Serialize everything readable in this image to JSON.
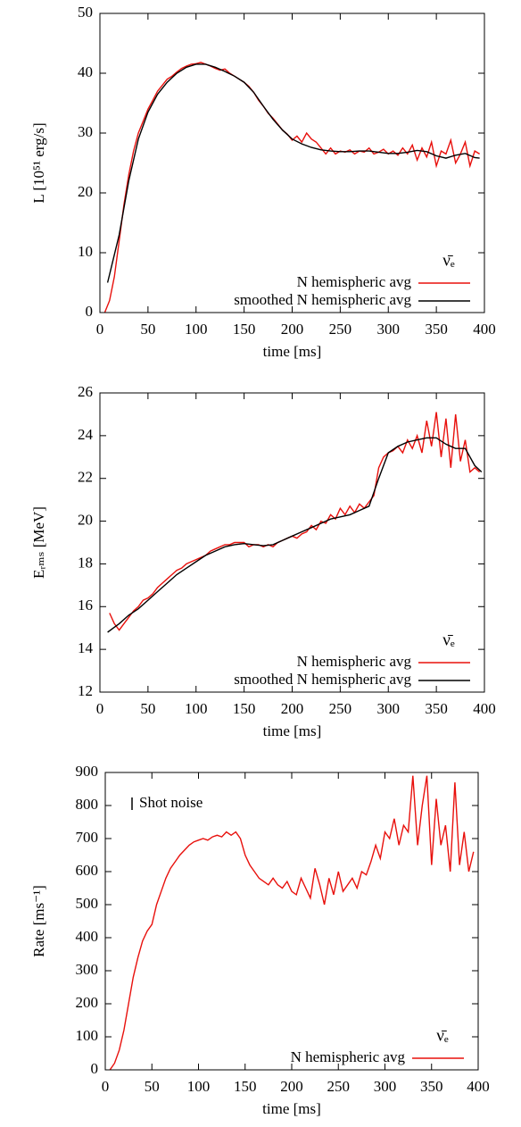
{
  "chart_data": [
    {
      "type": "line",
      "xlabel": "time [ms]",
      "ylabel": "L [10⁵¹ erg/s]",
      "legend_title": "ν̄ₑ",
      "legend": "lower right",
      "xlim": [
        0,
        400
      ],
      "xticks": [
        0,
        50,
        100,
        150,
        200,
        250,
        300,
        350,
        400
      ],
      "ylim": [
        0,
        50
      ],
      "yticks": [
        0,
        10,
        20,
        30,
        40,
        50
      ],
      "series": [
        {
          "name": "N hemispheric avg",
          "color": "#e8100c",
          "x": [
            5,
            10,
            15,
            20,
            25,
            30,
            35,
            40,
            45,
            50,
            55,
            60,
            65,
            70,
            75,
            80,
            85,
            90,
            95,
            100,
            105,
            110,
            115,
            120,
            125,
            130,
            135,
            140,
            145,
            150,
            155,
            160,
            165,
            170,
            175,
            180,
            185,
            190,
            195,
            200,
            205,
            210,
            215,
            220,
            225,
            230,
            235,
            240,
            245,
            250,
            255,
            260,
            265,
            270,
            275,
            280,
            285,
            290,
            295,
            300,
            305,
            310,
            315,
            320,
            325,
            330,
            335,
            340,
            345,
            350,
            355,
            360,
            365,
            370,
            375,
            380,
            385,
            390,
            395
          ],
          "values": [
            0,
            2,
            6,
            12,
            18,
            23,
            27,
            30,
            32,
            34,
            35.5,
            37,
            38,
            39,
            39.5,
            40.2,
            40.8,
            41.2,
            41.5,
            41.6,
            41.8,
            41.5,
            41.2,
            40.8,
            40.5,
            40.7,
            40.0,
            39.5,
            39.0,
            38.5,
            37.8,
            36.8,
            35.5,
            34.5,
            33.3,
            32.5,
            31.5,
            30.5,
            29.8,
            28.8,
            29.5,
            28.5,
            30.0,
            29.0,
            28.5,
            27.5,
            26.5,
            27.5,
            26.5,
            27.0,
            26.8,
            27.2,
            26.5,
            27.0,
            26.8,
            27.5,
            26.5,
            26.8,
            27.3,
            26.5,
            27.0,
            26.3,
            27.5,
            26.5,
            28.0,
            25.5,
            27.5,
            26.0,
            28.5,
            24.5,
            27.0,
            26.5,
            28.8,
            25.0,
            26.5,
            28.5,
            24.5,
            27.0,
            26.5
          ]
        },
        {
          "name": "smoothed N hemispheric avg",
          "color": "#000000",
          "x": [
            8,
            20,
            30,
            40,
            50,
            60,
            70,
            80,
            90,
            100,
            110,
            120,
            130,
            140,
            150,
            160,
            170,
            180,
            190,
            200,
            210,
            220,
            230,
            240,
            250,
            260,
            270,
            280,
            290,
            300,
            310,
            320,
            330,
            340,
            350,
            360,
            370,
            380,
            390,
            395
          ],
          "values": [
            5,
            13,
            22,
            29,
            33.5,
            36.5,
            38.5,
            40,
            41,
            41.5,
            41.5,
            41,
            40.3,
            39.5,
            38.5,
            36.8,
            34.5,
            32.3,
            30.5,
            29,
            28.2,
            27.6,
            27.2,
            27,
            26.9,
            26.9,
            27,
            27,
            26.8,
            26.6,
            26.6,
            26.8,
            27.1,
            26.9,
            26.2,
            25.8,
            26.3,
            26.6,
            25.9,
            25.8
          ]
        }
      ]
    },
    {
      "type": "line",
      "xlabel": "time [ms]",
      "ylabel": "Eᵣₘₛ [MeV]",
      "legend_title": "ν̄ₑ",
      "legend": "lower right",
      "xlim": [
        0,
        400
      ],
      "xticks": [
        0,
        50,
        100,
        150,
        200,
        250,
        300,
        350,
        400
      ],
      "ylim": [
        12,
        26
      ],
      "yticks": [
        12,
        14,
        16,
        18,
        20,
        22,
        24,
        26
      ],
      "series": [
        {
          "name": "N hemispheric avg",
          "color": "#e8100c",
          "x": [
            10,
            15,
            20,
            25,
            30,
            35,
            40,
            45,
            50,
            55,
            60,
            65,
            70,
            75,
            80,
            85,
            90,
            95,
            100,
            105,
            110,
            115,
            120,
            125,
            130,
            135,
            140,
            145,
            150,
            155,
            160,
            165,
            170,
            175,
            180,
            185,
            190,
            195,
            200,
            205,
            210,
            215,
            220,
            225,
            230,
            235,
            240,
            245,
            250,
            255,
            260,
            265,
            270,
            275,
            280,
            285,
            290,
            295,
            300,
            305,
            310,
            315,
            320,
            325,
            330,
            335,
            340,
            345,
            350,
            355,
            360,
            365,
            370,
            375,
            380,
            385,
            390,
            395
          ],
          "values": [
            15.7,
            15.2,
            14.9,
            15.2,
            15.5,
            15.8,
            16.0,
            16.3,
            16.4,
            16.6,
            16.9,
            17.1,
            17.3,
            17.5,
            17.7,
            17.8,
            18.0,
            18.1,
            18.2,
            18.3,
            18.4,
            18.6,
            18.7,
            18.8,
            18.9,
            18.9,
            19.0,
            19.0,
            19.0,
            18.8,
            18.9,
            18.9,
            18.8,
            18.9,
            18.8,
            19.0,
            19.1,
            19.2,
            19.3,
            19.2,
            19.4,
            19.5,
            19.8,
            19.6,
            20.0,
            19.9,
            20.3,
            20.1,
            20.6,
            20.3,
            20.7,
            20.4,
            20.8,
            20.6,
            20.9,
            21.2,
            22.5,
            23.0,
            23.2,
            23.3,
            23.5,
            23.2,
            23.8,
            23.4,
            24.0,
            23.2,
            24.7,
            23.5,
            25.1,
            23.0,
            24.8,
            22.5,
            25.0,
            22.8,
            23.8,
            22.3,
            22.5,
            22.3
          ]
        },
        {
          "name": "smoothed N hemispheric avg",
          "color": "#000000",
          "x": [
            8,
            20,
            30,
            40,
            50,
            60,
            70,
            80,
            90,
            100,
            110,
            120,
            130,
            140,
            150,
            160,
            170,
            180,
            190,
            200,
            210,
            220,
            230,
            240,
            250,
            260,
            270,
            280,
            290,
            300,
            310,
            320,
            330,
            340,
            350,
            360,
            370,
            380,
            390,
            397
          ],
          "values": [
            14.8,
            15.2,
            15.6,
            15.9,
            16.3,
            16.7,
            17.1,
            17.5,
            17.8,
            18.1,
            18.4,
            18.6,
            18.8,
            18.9,
            18.95,
            18.9,
            18.85,
            18.9,
            19.1,
            19.3,
            19.5,
            19.7,
            19.9,
            20.1,
            20.2,
            20.3,
            20.5,
            20.7,
            22.0,
            23.2,
            23.5,
            23.7,
            23.8,
            23.9,
            23.9,
            23.6,
            23.4,
            23.4,
            22.6,
            22.3
          ]
        }
      ]
    },
    {
      "type": "line",
      "xlabel": "time [ms]",
      "ylabel": "Rate [ms⁻¹]",
      "legend_title": "ν̄ₑ",
      "legend": "lower right",
      "annotations": [
        {
          "text": "Shot noise"
        }
      ],
      "xlim": [
        0,
        400
      ],
      "xticks": [
        0,
        50,
        100,
        150,
        200,
        250,
        300,
        350,
        400
      ],
      "ylim": [
        0,
        900
      ],
      "yticks": [
        0,
        100,
        200,
        300,
        400,
        500,
        600,
        700,
        800,
        900
      ],
      "series": [
        {
          "name": "N hemispheric avg",
          "color": "#e8100c",
          "x": [
            5,
            10,
            15,
            20,
            25,
            30,
            35,
            40,
            45,
            50,
            55,
            60,
            65,
            70,
            75,
            80,
            85,
            90,
            95,
            100,
            105,
            110,
            115,
            120,
            125,
            130,
            135,
            140,
            145,
            150,
            155,
            160,
            165,
            170,
            175,
            180,
            185,
            190,
            195,
            200,
            205,
            210,
            215,
            220,
            225,
            230,
            235,
            240,
            245,
            250,
            255,
            260,
            265,
            270,
            275,
            280,
            285,
            290,
            295,
            300,
            305,
            310,
            315,
            320,
            325,
            330,
            335,
            340,
            345,
            350,
            355,
            360,
            365,
            370,
            375,
            380,
            385,
            390,
            395
          ],
          "values": [
            0,
            20,
            60,
            120,
            200,
            280,
            340,
            390,
            420,
            440,
            500,
            540,
            580,
            610,
            630,
            650,
            665,
            680,
            690,
            695,
            700,
            695,
            705,
            710,
            705,
            720,
            710,
            720,
            700,
            650,
            620,
            600,
            580,
            570,
            560,
            580,
            560,
            550,
            570,
            540,
            530,
            580,
            550,
            520,
            610,
            560,
            500,
            580,
            530,
            600,
            540,
            560,
            580,
            550,
            600,
            590,
            630,
            680,
            640,
            720,
            700,
            760,
            680,
            740,
            720,
            890,
            680,
            800,
            890,
            620,
            820,
            680,
            740,
            600,
            870,
            620,
            720,
            600,
            660
          ]
        }
      ]
    }
  ]
}
